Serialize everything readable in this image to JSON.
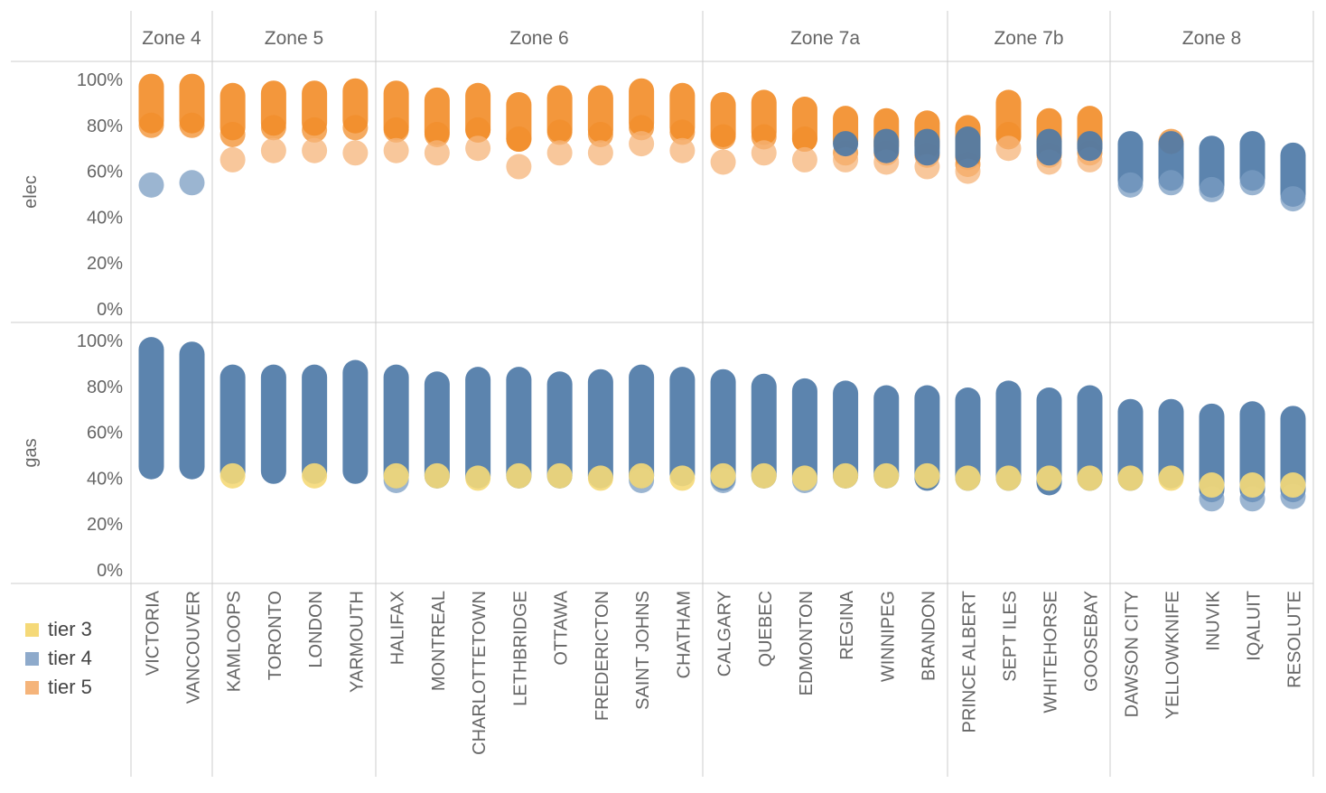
{
  "chart_data": {
    "type": "scatter",
    "title": "",
    "columns": [
      "Zone 4",
      "Zone 5",
      "Zone 6",
      "Zone 7a",
      "Zone 7b",
      "Zone 8"
    ],
    "cities": [
      {
        "name": "VICTORIA",
        "zone": "Zone 4"
      },
      {
        "name": "VANCOUVER",
        "zone": "Zone 4"
      },
      {
        "name": "KAMLOOPS",
        "zone": "Zone 5"
      },
      {
        "name": "TORONTO",
        "zone": "Zone 5"
      },
      {
        "name": "LONDON",
        "zone": "Zone 5"
      },
      {
        "name": "YARMOUTH",
        "zone": "Zone 5"
      },
      {
        "name": "HALIFAX",
        "zone": "Zone 6"
      },
      {
        "name": "MONTREAL",
        "zone": "Zone 6"
      },
      {
        "name": "CHARLOTTETOWN",
        "zone": "Zone 6"
      },
      {
        "name": "LETHBRIDGE",
        "zone": "Zone 6"
      },
      {
        "name": "OTTAWA",
        "zone": "Zone 6"
      },
      {
        "name": "FREDERICTON",
        "zone": "Zone 6"
      },
      {
        "name": "SAINT JOHNS",
        "zone": "Zone 6"
      },
      {
        "name": "CHATHAM",
        "zone": "Zone 6"
      },
      {
        "name": "CALGARY",
        "zone": "Zone 7a"
      },
      {
        "name": "QUEBEC",
        "zone": "Zone 7a"
      },
      {
        "name": "EDMONTON",
        "zone": "Zone 7a"
      },
      {
        "name": "REGINA",
        "zone": "Zone 7a"
      },
      {
        "name": "WINNIPEG",
        "zone": "Zone 7a"
      },
      {
        "name": "BRANDON",
        "zone": "Zone 7a"
      },
      {
        "name": "PRINCE ALBERT",
        "zone": "Zone 7b"
      },
      {
        "name": "SEPT ILES",
        "zone": "Zone 7b"
      },
      {
        "name": "WHITEHORSE",
        "zone": "Zone 7b"
      },
      {
        "name": "GOOSEBAY",
        "zone": "Zone 7b"
      },
      {
        "name": "DAWSON CITY",
        "zone": "Zone 8"
      },
      {
        "name": "YELLOWKNIFE",
        "zone": "Zone 8"
      },
      {
        "name": "INUVIK",
        "zone": "Zone 8"
      },
      {
        "name": "IQALUIT",
        "zone": "Zone 8"
      },
      {
        "name": "RESOLUTE",
        "zone": "Zone 8"
      }
    ],
    "rows": [
      {
        "label": "elec",
        "ylim": [
          0,
          100
        ],
        "ticks": [
          "0%",
          "20%",
          "40%",
          "60%",
          "80%",
          "100%"
        ]
      },
      {
        "label": "gas",
        "ylim": [
          0,
          100
        ],
        "ticks": [
          "0%",
          "20%",
          "40%",
          "60%",
          "80%",
          "100%"
        ]
      }
    ],
    "legend": [
      {
        "name": "tier 3",
        "color": "#f5d978"
      },
      {
        "name": "tier 4",
        "color": "#4e79a7"
      },
      {
        "name": "tier 5",
        "color": "#f28e2b"
      }
    ],
    "legend_placement": "bottom-left",
    "series": [
      {
        "name": "tier 5",
        "row": "elec",
        "color": "#f28e2b",
        "ranges": [
          [
            82,
            97
          ],
          [
            82,
            97
          ],
          [
            79,
            93
          ],
          [
            81,
            94
          ],
          [
            81,
            94
          ],
          [
            82,
            95
          ],
          [
            79,
            94
          ],
          [
            77,
            91
          ],
          [
            78,
            93
          ],
          [
            74,
            89
          ],
          [
            78,
            92
          ],
          [
            78,
            92
          ],
          [
            81,
            95
          ],
          [
            79,
            93
          ],
          [
            76,
            89
          ],
          [
            77,
            90
          ],
          [
            74,
            87
          ],
          [
            73,
            83
          ],
          [
            71,
            82
          ],
          [
            71,
            81
          ],
          [
            66,
            79
          ],
          [
            75,
            90
          ],
          [
            71,
            82
          ],
          [
            71,
            83
          ],
          [
            null,
            null
          ],
          [
            null,
            null
          ],
          [
            null,
            null
          ],
          [
            null,
            null
          ],
          [
            null,
            null
          ]
        ]
      },
      {
        "name": "tier 5",
        "row": "elec",
        "color": "#f28e2b",
        "outliers": true,
        "values": [
          80,
          80,
          76,
          79,
          78,
          79,
          78,
          76,
          78,
          74,
          77,
          76,
          79,
          77,
          75,
          75,
          74,
          68,
          68,
          67,
          63,
          76,
          67,
          68,
          null,
          73,
          null,
          null,
          null
        ]
      },
      {
        "name": "tier 5",
        "row": "elec",
        "color": "#f5b47a",
        "outliers": true,
        "values": [
          null,
          null,
          65,
          69,
          69,
          68,
          69,
          68,
          70,
          62,
          68,
          68,
          72,
          69,
          64,
          68,
          65,
          65,
          64,
          62,
          60,
          70,
          64,
          65,
          null,
          null,
          null,
          null,
          null
        ]
      },
      {
        "name": "tier 4",
        "row": "elec",
        "color": "#4e79a7",
        "ranges": [
          [
            null,
            null
          ],
          [
            null,
            null
          ],
          [
            null,
            null
          ],
          [
            null,
            null
          ],
          [
            null,
            null
          ],
          [
            null,
            null
          ],
          [
            null,
            null
          ],
          [
            null,
            null
          ],
          [
            null,
            null
          ],
          [
            null,
            null
          ],
          [
            null,
            null
          ],
          [
            null,
            null
          ],
          [
            null,
            null
          ],
          [
            null,
            null
          ],
          [
            null,
            null
          ],
          [
            null,
            null
          ],
          [
            null,
            null
          ],
          [
            72,
            72
          ],
          [
            69,
            73
          ],
          [
            68,
            73
          ],
          [
            67,
            74
          ],
          [
            null,
            null
          ],
          [
            68,
            73
          ],
          [
            70,
            72
          ],
          [
            56,
            72
          ],
          [
            57,
            72
          ],
          [
            54,
            70
          ],
          [
            57,
            72
          ],
          [
            50,
            67
          ]
        ]
      },
      {
        "name": "tier 4",
        "row": "elec",
        "color": "#7a9cc2",
        "outliers": true,
        "values": [
          54,
          55,
          null,
          null,
          null,
          null,
          null,
          null,
          null,
          null,
          null,
          null,
          null,
          null,
          null,
          null,
          null,
          null,
          null,
          null,
          null,
          null,
          null,
          null,
          54,
          55,
          52,
          55,
          48
        ]
      },
      {
        "name": "tier 4",
        "row": "gas",
        "color": "#4e79a7",
        "ranges": [
          [
            45,
            96
          ],
          [
            45,
            94
          ],
          [
            43,
            84
          ],
          [
            43,
            84
          ],
          [
            43,
            84
          ],
          [
            43,
            86
          ],
          [
            41,
            84
          ],
          [
            41,
            81
          ],
          [
            41,
            83
          ],
          [
            41,
            83
          ],
          [
            41,
            81
          ],
          [
            41,
            82
          ],
          [
            41,
            84
          ],
          [
            42,
            83
          ],
          [
            40,
            82
          ],
          [
            41,
            80
          ],
          [
            40,
            78
          ],
          [
            41,
            77
          ],
          [
            41,
            75
          ],
          [
            40,
            75
          ],
          [
            40,
            74
          ],
          [
            40,
            77
          ],
          [
            38,
            74
          ],
          [
            40,
            75
          ],
          [
            40,
            69
          ],
          [
            41,
            69
          ],
          [
            35,
            67
          ],
          [
            35,
            68
          ],
          [
            35,
            66
          ]
        ]
      },
      {
        "name": "tier 4",
        "row": "gas",
        "color": "#7a9cc2",
        "outliers": true,
        "values": [
          null,
          null,
          null,
          null,
          null,
          null,
          39,
          null,
          null,
          null,
          null,
          null,
          39,
          null,
          39,
          null,
          39,
          null,
          null,
          null,
          null,
          null,
          null,
          null,
          null,
          null,
          31,
          31,
          32
        ]
      },
      {
        "name": "tier 3",
        "row": "gas",
        "color": "#f5d978",
        "values": [
          null,
          null,
          41,
          null,
          41,
          null,
          41,
          41,
          40,
          41,
          41,
          40,
          41,
          40,
          41,
          41,
          40,
          41,
          41,
          41,
          40,
          40,
          40,
          40,
          40,
          40,
          37,
          37,
          37
        ]
      }
    ]
  }
}
